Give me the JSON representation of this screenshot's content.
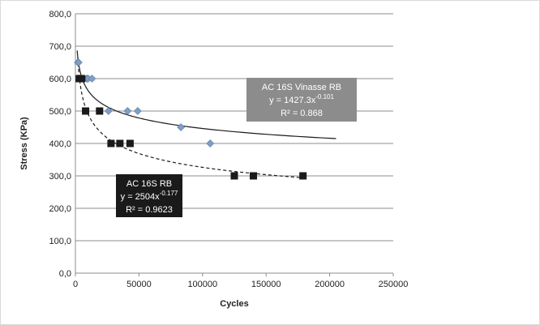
{
  "chart_data": {
    "type": "scatter",
    "xlabel": "Cycles",
    "ylabel": "Stress (KPa)",
    "xlim": [
      0,
      250000
    ],
    "ylim": [
      0,
      800
    ],
    "x_ticks": [
      "0",
      "50000",
      "100000",
      "150000",
      "200000",
      "250000"
    ],
    "y_ticks": [
      "0,0",
      "100,0",
      "200,0",
      "300,0",
      "400,0",
      "500,0",
      "600,0",
      "700,0",
      "800,0"
    ],
    "grid": "horizontal",
    "colors": {
      "vinasse": "#7f9ec4",
      "rb": "#1a1a1a",
      "vinasse_box": "#8c8c8c",
      "rb_box": "#1a1a1a"
    },
    "series": [
      {
        "name": "AC 16S Vinasse RB",
        "marker": "diamond",
        "points": [
          [
            2000,
            650
          ],
          [
            2500,
            650
          ],
          [
            4000,
            600
          ],
          [
            6000,
            600
          ],
          [
            9000,
            600
          ],
          [
            10000,
            600
          ],
          [
            13000,
            600
          ],
          [
            26000,
            500
          ],
          [
            41000,
            500
          ],
          [
            49000,
            500
          ],
          [
            83000,
            450
          ],
          [
            106000,
            400
          ]
        ],
        "trendline": {
          "type": "power",
          "a": 1427.3,
          "b": -0.101,
          "style": "solid"
        },
        "annotation": {
          "title": "AC 16S Vinasse  RB",
          "equation_base": "y = 1427.3x",
          "exponent": "-0.101",
          "r2": "R² = 0.868"
        }
      },
      {
        "name": "AC 16S RB",
        "marker": "square",
        "points": [
          [
            3000,
            600
          ],
          [
            5000,
            600
          ],
          [
            8000,
            500
          ],
          [
            19000,
            500
          ],
          [
            28000,
            400
          ],
          [
            35000,
            400
          ],
          [
            43000,
            400
          ],
          [
            125000,
            300
          ],
          [
            140000,
            300
          ],
          [
            179000,
            300
          ]
        ],
        "trendline": {
          "type": "power",
          "a": 2504,
          "b": -0.177,
          "style": "dashed"
        },
        "annotation": {
          "title": "AC 16S RB",
          "equation_base": "y = 2504x",
          "exponent": "-0.177",
          "r2": "R² = 0.9623"
        }
      }
    ]
  }
}
